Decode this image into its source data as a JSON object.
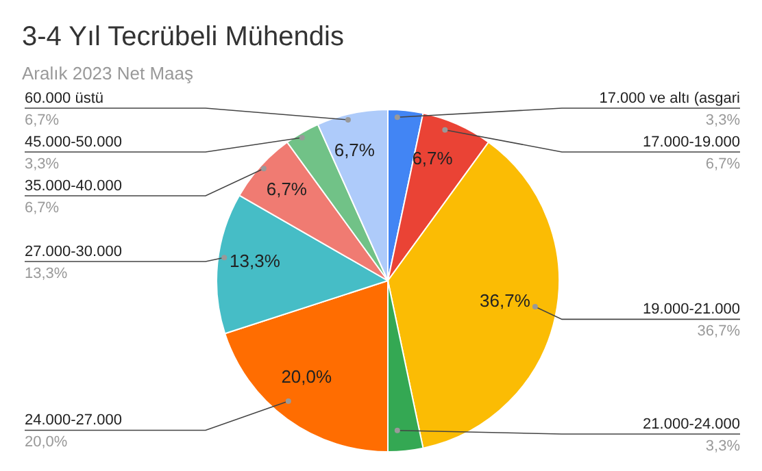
{
  "chart_data": {
    "type": "pie",
    "title": "3-4 Yıl Tecrübeli Mühendis",
    "subtitle": "Aralık 2023 Net Maaş",
    "categories": [
      "17.000 ve altı (asgari",
      "17.000-19.000",
      "19.000-21.000",
      "21.000-24.000",
      "24.000-27.000",
      "27.000-30.000",
      "35.000-40.000",
      "45.000-50.000",
      "60.000 üstü"
    ],
    "values": [
      3.3,
      6.7,
      36.7,
      3.3,
      20.0,
      13.3,
      6.7,
      3.3,
      6.7
    ],
    "colors": [
      "#4285f4",
      "#ea4335",
      "#fbbc04",
      "#34a853",
      "#ff6d01",
      "#46bdc6",
      "#f07b72",
      "#71c287",
      "#aecbfa"
    ],
    "value_labels": [
      "3,3%",
      "6,7%",
      "36,7%",
      "3,3%",
      "20,0%",
      "13,3%",
      "6,7%",
      "3,3%",
      "6,7%"
    ],
    "annotations": [
      {
        "text": "6,7%",
        "x": "17.000-19.000"
      },
      {
        "text": "36,7%",
        "x": "19.000-21.000"
      },
      {
        "text": "20,0%",
        "x": "24.000-27.000"
      },
      {
        "text": "13,3%",
        "x": "27.000-30.000"
      },
      {
        "text": "6,7%",
        "x": "35.000-40.000"
      },
      {
        "text": "6,7%",
        "x": "60.000 üstü"
      }
    ],
    "legend": false
  }
}
